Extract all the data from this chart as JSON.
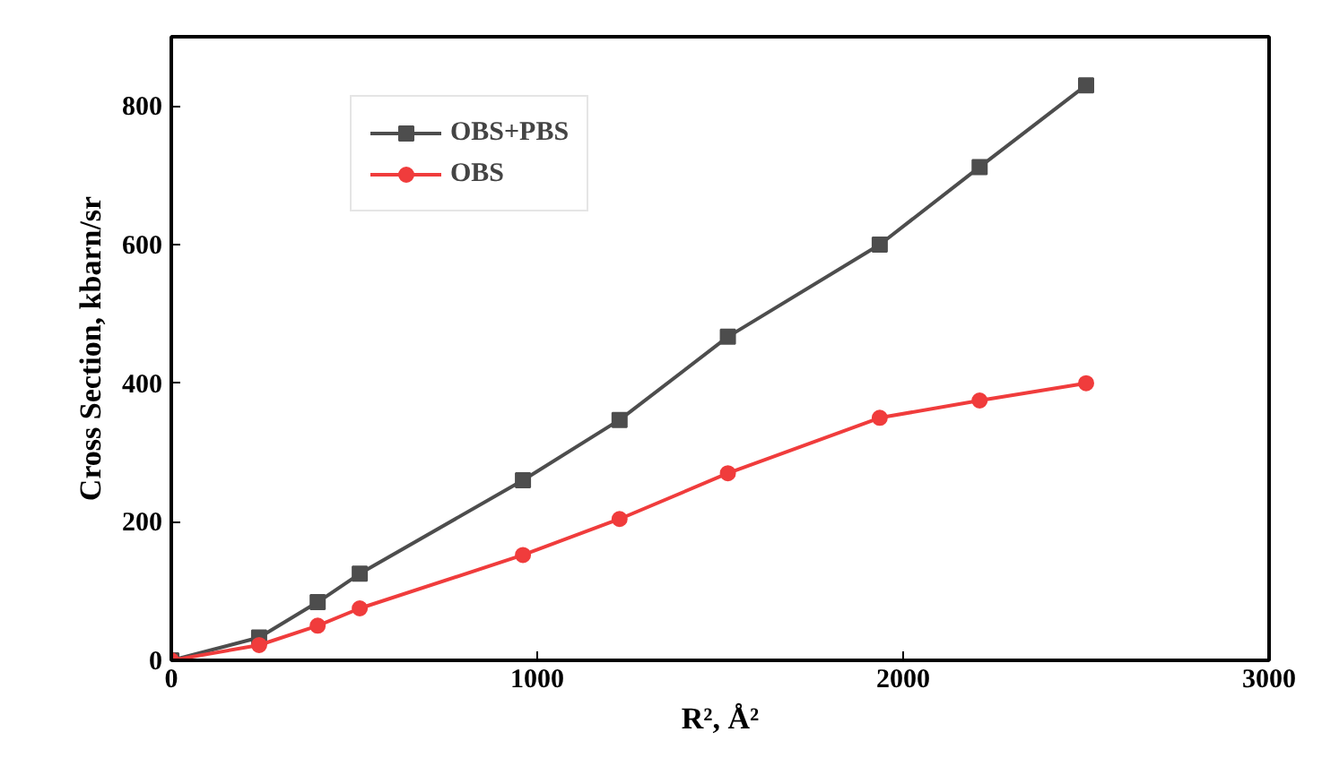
{
  "chart_data": {
    "type": "line",
    "xlabel": "R², Å²",
    "ylabel": "Cross Section, kbarn/sr",
    "x": [
      0,
      240,
      400,
      515,
      961,
      1225,
      1521,
      1936,
      2209,
      2500
    ],
    "series": [
      {
        "name": "OBS+PBS",
        "color": "#4d4d4d",
        "marker": "square",
        "values": [
          0,
          33,
          84,
          125,
          260,
          347,
          467,
          600,
          712,
          830
        ]
      },
      {
        "name": "OBS",
        "color": "#f03c3c",
        "marker": "circle",
        "values": [
          0,
          22,
          50,
          75,
          152,
          204,
          270,
          350,
          375,
          400
        ]
      }
    ],
    "xlim": [
      0,
      3000
    ],
    "ylim": [
      0,
      900
    ],
    "xticks": [
      0,
      1000,
      2000,
      3000
    ],
    "yticks": [
      0,
      200,
      400,
      600,
      800
    ],
    "grid": false,
    "legend": "top left",
    "line_style": "solid"
  }
}
